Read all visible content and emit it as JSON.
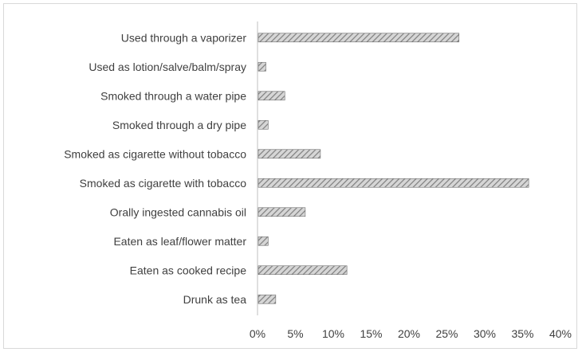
{
  "chart_data": {
    "type": "bar",
    "orientation": "horizontal",
    "categories": [
      "Used through a vaporizer",
      "Used as lotion/salve/balm/spray",
      "Smoked through a water pipe",
      "Smoked through a dry pipe",
      "Smoked as cigarette without tobacco",
      "Smoked as cigarette with tobacco",
      "Orally ingested cannabis oil",
      "Eaten as leaf/flower matter",
      "Eaten as cooked recipe",
      "Drunk as tea"
    ],
    "values": [
      26.5,
      1.0,
      3.5,
      1.3,
      8.2,
      35.7,
      6.2,
      1.3,
      11.7,
      2.3
    ],
    "x_ticks": [
      "0%",
      "5%",
      "10%",
      "15%",
      "20%",
      "25%",
      "30%",
      "35%",
      "40%"
    ],
    "xlim": [
      0,
      40
    ],
    "title": "",
    "xlabel": "",
    "ylabel": "",
    "grid": false,
    "legend": "none",
    "bar_fill": "hatched",
    "colors": {
      "bar_base": "#d6d6d6",
      "bar_hatch": "#7f7f7f",
      "bar_border": "#6e6e6e",
      "axis": "#bfbfbf",
      "text": "#404040",
      "frame": "#d9d9d9"
    }
  }
}
